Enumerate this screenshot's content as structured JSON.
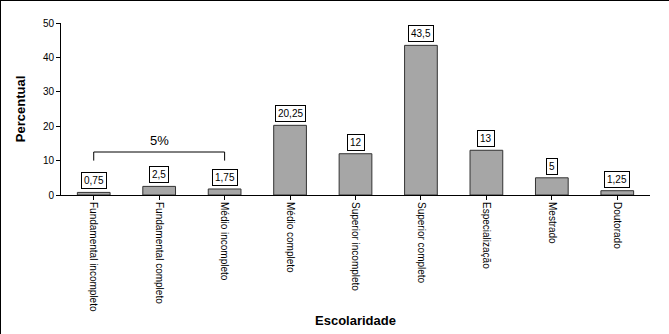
{
  "chart_data": {
    "type": "bar",
    "x_label": "Escolaridade",
    "y_label": "Percentual",
    "categories": [
      "Fundamental incompleto",
      "Fundamental completo",
      "Médio incompleto",
      "Médio completo",
      "Superior incompleto",
      "Superior completo",
      "Especialização",
      "Mestrado",
      "Doutorado"
    ],
    "values": [
      0.75,
      2.5,
      1.75,
      20.25,
      12,
      43.5,
      13,
      5,
      1.25
    ],
    "value_labels": [
      "0,75",
      "2,5",
      "1,75",
      "20,25",
      "12",
      "43,5",
      "13",
      "5",
      "1,25"
    ],
    "color": "#a6a6a6",
    "ylim": [
      0,
      50
    ],
    "yticks": [
      0,
      10,
      20,
      30,
      40,
      50
    ],
    "grid": false,
    "data_labels": true,
    "annotations": [
      {
        "text": "5%",
        "from": "Fundamental incompleto",
        "to": "Médio incompleto"
      }
    ]
  }
}
